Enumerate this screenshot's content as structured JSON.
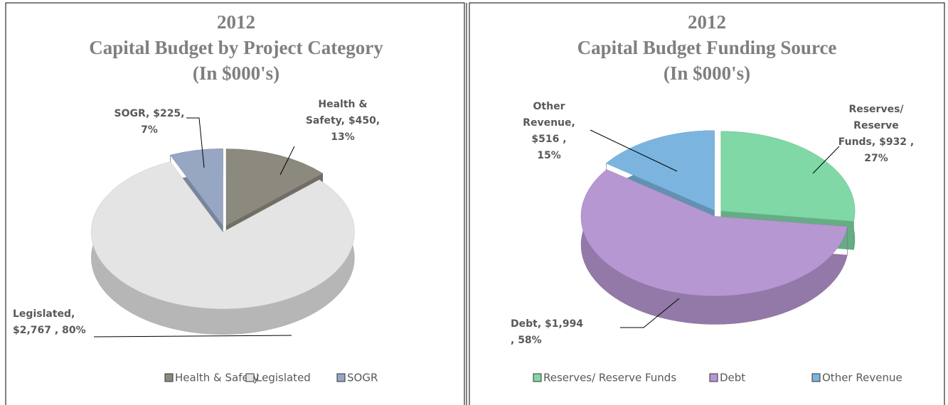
{
  "chart_data": [
    {
      "type": "pie",
      "title": [
        "2012",
        "Capital Budget by Project Category",
        "(In $000's)"
      ],
      "categories": [
        "Health & Safety",
        "Legislated",
        "SOGR"
      ],
      "values": [
        450,
        2767,
        225
      ],
      "value_labels": [
        [
          "Health &",
          "Safety, $450,",
          "13%"
        ],
        [
          "Legislated,",
          "$2,767 , 80%"
        ],
        [
          "SOGR, $225,",
          "7%"
        ]
      ],
      "colors": [
        "#8c8a7e",
        "#e4e4e4",
        "#97a6c2"
      ],
      "legend": "bottom"
    },
    {
      "type": "pie",
      "title": [
        "2012",
        "Capital Budget Funding Source",
        "(In $000's)"
      ],
      "categories": [
        "Reserves/ Reserve Funds",
        "Debt",
        "Other Revenue"
      ],
      "values": [
        932,
        1994,
        516
      ],
      "value_labels": [
        [
          "Reserves/",
          "Reserve",
          "Funds, $932 ,",
          "27%"
        ],
        [
          "Debt, $1,994",
          ", 58%"
        ],
        [
          "Other",
          "Revenue,",
          "$516 ,",
          "15%"
        ]
      ],
      "colors": [
        "#7fd8a6",
        "#b697d2",
        "#7bb5df"
      ],
      "legend": "bottom"
    }
  ]
}
